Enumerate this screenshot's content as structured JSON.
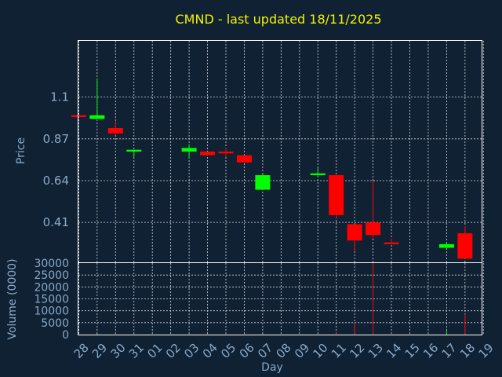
{
  "chart_data": {
    "type": "candlestick",
    "title": "CMND - last updated 18/11/2025",
    "xlabel": "Day",
    "ylabel": "Price",
    "volume_label": "Volume (0000)",
    "grid": true,
    "x_ticks": [
      "28",
      "29",
      "30",
      "31",
      "01",
      "02",
      "03",
      "04",
      "05",
      "06",
      "07",
      "08",
      "09",
      "10",
      "11",
      "12",
      "13",
      "14",
      "15",
      "16",
      "17",
      "18",
      "19"
    ],
    "price_ticks": [
      0.41,
      0.64,
      0.87,
      1.1
    ],
    "price_ylim": [
      0.19,
      1.41
    ],
    "volume_ticks": [
      0,
      5000,
      10000,
      15000,
      20000,
      25000,
      30000
    ],
    "volume_ylim": [
      0,
      30000
    ],
    "up_color": "#00ff00",
    "down_color": "#ff0000",
    "candles": [
      {
        "day": 0,
        "open": 1.0,
        "close": 0.99,
        "high": 1.0,
        "low": 0.99
      },
      {
        "day": 1,
        "open": 0.98,
        "close": 1.0,
        "high": 1.2,
        "low": 0.98
      },
      {
        "day": 2,
        "open": 0.93,
        "close": 0.9,
        "high": 0.97,
        "low": 0.89
      },
      {
        "day": 3,
        "open": 0.8,
        "close": 0.81,
        "high": 0.81,
        "low": 0.77
      },
      {
        "day": 6,
        "open": 0.8,
        "close": 0.82,
        "high": 0.84,
        "low": 0.76
      },
      {
        "day": 7,
        "open": 0.8,
        "close": 0.78,
        "high": 0.8,
        "low": 0.78
      },
      {
        "day": 8,
        "open": 0.8,
        "close": 0.79,
        "high": 0.82,
        "low": 0.77
      },
      {
        "day": 9,
        "open": 0.78,
        "close": 0.74,
        "high": 0.78,
        "low": 0.74
      },
      {
        "day": 10,
        "open": 0.59,
        "close": 0.67,
        "high": 0.68,
        "low": 0.59
      },
      {
        "day": 13,
        "open": 0.67,
        "close": 0.68,
        "high": 0.71,
        "low": 0.66
      },
      {
        "day": 14,
        "open": 0.67,
        "close": 0.45,
        "high": 0.67,
        "low": 0.43
      },
      {
        "day": 15,
        "open": 0.4,
        "close": 0.31,
        "high": 0.4,
        "low": 0.25
      },
      {
        "day": 16,
        "open": 0.41,
        "close": 0.34,
        "high": 0.64,
        "low": 0.32
      },
      {
        "day": 17,
        "open": 0.3,
        "close": 0.29,
        "high": 0.32,
        "low": 0.29
      },
      {
        "day": 20,
        "open": 0.27,
        "close": 0.29,
        "high": 0.3,
        "low": 0.26
      },
      {
        "day": 21,
        "open": 0.35,
        "close": 0.21,
        "high": 0.39,
        "low": 0.21
      }
    ],
    "volumes": [
      {
        "day": 0,
        "value": 0,
        "dir": "down"
      },
      {
        "day": 1,
        "value": 300,
        "dir": "up"
      },
      {
        "day": 2,
        "value": 100,
        "dir": "down"
      },
      {
        "day": 3,
        "value": 100,
        "dir": "up"
      },
      {
        "day": 6,
        "value": 100,
        "dir": "up"
      },
      {
        "day": 7,
        "value": 100,
        "dir": "down"
      },
      {
        "day": 8,
        "value": 100,
        "dir": "down"
      },
      {
        "day": 9,
        "value": 100,
        "dir": "down"
      },
      {
        "day": 10,
        "value": 200,
        "dir": "up"
      },
      {
        "day": 13,
        "value": 100,
        "dir": "up"
      },
      {
        "day": 14,
        "value": 800,
        "dir": "down"
      },
      {
        "day": 15,
        "value": 4900,
        "dir": "down"
      },
      {
        "day": 16,
        "value": 30000,
        "dir": "down"
      },
      {
        "day": 17,
        "value": 100,
        "dir": "down"
      },
      {
        "day": 20,
        "value": 2000,
        "dir": "up"
      },
      {
        "day": 21,
        "value": 8500,
        "dir": "down"
      }
    ]
  }
}
